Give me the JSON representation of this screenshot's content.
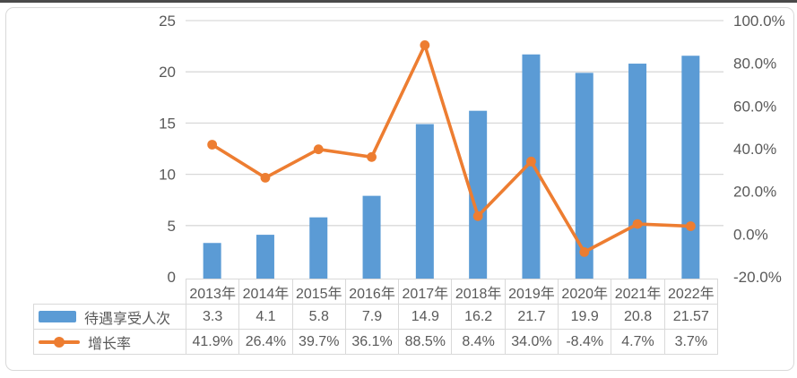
{
  "page": {
    "background": "#ffffff"
  },
  "colors": {
    "bar": "#5B9BD5",
    "line": "#ED7D31",
    "grid": "#D9D9D9",
    "axis_text": "#595959",
    "table_border": "#D9D9D9",
    "table_text": "#595959",
    "frame_border": "#D9D9D9"
  },
  "chart_data": {
    "type": "bar",
    "subtype": "combo-bar-line-with-data-table",
    "categories": [
      "2013年",
      "2014年",
      "2015年",
      "2016年",
      "2017年",
      "2018年",
      "2019年",
      "2020年",
      "2021年",
      "2022年"
    ],
    "series": [
      {
        "name": "待遇享受人次",
        "type": "bar",
        "axis": "left",
        "color": "#5B9BD5",
        "values": [
          3.3,
          4.1,
          5.8,
          7.9,
          14.9,
          16.2,
          21.7,
          19.9,
          20.8,
          21.57
        ],
        "display": [
          "3.3",
          "4.1",
          "5.8",
          "7.9",
          "14.9",
          "16.2",
          "21.7",
          "19.9",
          "20.8",
          "21.57"
        ]
      },
      {
        "name": "增长率",
        "type": "line",
        "axis": "right",
        "color": "#ED7D31",
        "values": [
          41.9,
          26.4,
          39.7,
          36.1,
          88.5,
          8.4,
          34.0,
          -8.4,
          4.7,
          3.7
        ],
        "display": [
          "41.9%",
          "26.4%",
          "39.7%",
          "36.1%",
          "88.5%",
          "8.4%",
          "34.0%",
          "-8.4%",
          "4.7%",
          "3.7%"
        ]
      }
    ],
    "left_axis": {
      "min": 0,
      "max": 25,
      "ticks": [
        "0",
        "5",
        "10",
        "15",
        "20",
        "25"
      ]
    },
    "right_axis": {
      "min": -20,
      "max": 100,
      "ticks": [
        "-20.0%",
        "0.0%",
        "20.0%",
        "40.0%",
        "60.0%",
        "80.0%",
        "100.0%"
      ]
    },
    "grid": "horizontal",
    "legend_position": "data-table-left",
    "title": ""
  }
}
